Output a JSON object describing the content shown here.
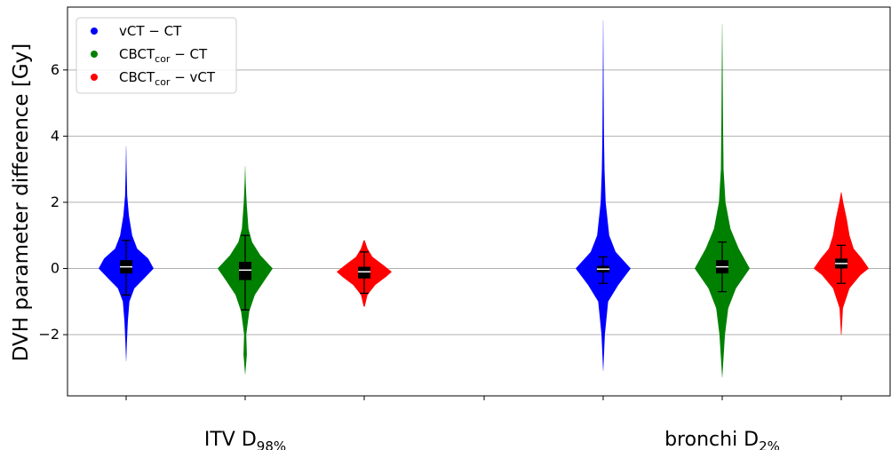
{
  "chart_data": {
    "type": "violin",
    "ylabel": "DVH parameter difference [Gy]",
    "ylim": [
      -3.85,
      7.9
    ],
    "yticks": [
      -2,
      0,
      2,
      4,
      6
    ],
    "grid": "y",
    "legend_position": "top-left",
    "groups": [
      {
        "name": "ITV",
        "sub": "98%"
      },
      {
        "name": "bronchi",
        "sub": "2%"
      }
    ],
    "series": [
      {
        "name": "vCT − CT",
        "label_main": "vCT − CT",
        "label_sub": "",
        "label_rest": "",
        "color": "#0000ff"
      },
      {
        "name": "CBCTcor − CT",
        "label_main": "CBCT",
        "label_sub": "cor",
        "label_rest": " − CT",
        "color": "#008000"
      },
      {
        "name": "CBCTcor − vCT",
        "label_main": "CBCT",
        "label_sub": "cor",
        "label_rest": " − vCT",
        "color": "#ff0000"
      }
    ],
    "violins": [
      {
        "group": 0,
        "series": 0,
        "min": -2.8,
        "max": 3.7,
        "q1": -0.15,
        "median": 0.05,
        "q3": 0.25,
        "wlo": -0.8,
        "whi": 0.85,
        "profile": [
          [
            -2.8,
            0.003
          ],
          [
            -2.2,
            0.03
          ],
          [
            -1.6,
            0.06
          ],
          [
            -1.0,
            0.12
          ],
          [
            -0.6,
            0.3
          ],
          [
            -0.3,
            0.65
          ],
          [
            0.0,
            1.0
          ],
          [
            0.3,
            0.8
          ],
          [
            0.6,
            0.4
          ],
          [
            1.0,
            0.22
          ],
          [
            1.6,
            0.1
          ],
          [
            2.2,
            0.04
          ],
          [
            3.0,
            0.015
          ],
          [
            3.7,
            0.003
          ]
        ]
      },
      {
        "group": 0,
        "series": 1,
        "min": -3.2,
        "max": 3.1,
        "q1": -0.35,
        "median": -0.05,
        "q3": 0.2,
        "wlo": -1.25,
        "whi": 1.0,
        "profile": [
          [
            -3.2,
            0.003
          ],
          [
            -2.6,
            0.06
          ],
          [
            -2.0,
            0.04
          ],
          [
            -1.3,
            0.15
          ],
          [
            -0.8,
            0.35
          ],
          [
            -0.3,
            0.75
          ],
          [
            0.0,
            1.0
          ],
          [
            0.4,
            0.55
          ],
          [
            0.8,
            0.25
          ],
          [
            1.2,
            0.12
          ],
          [
            2.0,
            0.05
          ],
          [
            2.6,
            0.02
          ],
          [
            3.1,
            0.003
          ]
        ]
      },
      {
        "group": 0,
        "series": 2,
        "min": -1.15,
        "max": 0.85,
        "q1": -0.3,
        "median": -0.1,
        "q3": 0.05,
        "wlo": -0.75,
        "whi": 0.5,
        "profile": [
          [
            -1.15,
            0.02
          ],
          [
            -0.8,
            0.12
          ],
          [
            -0.5,
            0.4
          ],
          [
            -0.25,
            0.8
          ],
          [
            -0.1,
            1.0
          ],
          [
            0.1,
            0.7
          ],
          [
            0.35,
            0.3
          ],
          [
            0.6,
            0.12
          ],
          [
            0.85,
            0.02
          ]
        ]
      },
      {
        "group": 1,
        "series": 0,
        "min": -3.1,
        "max": 7.5,
        "q1": -0.12,
        "median": -0.02,
        "q3": 0.08,
        "wlo": -0.45,
        "whi": 0.35,
        "profile": [
          [
            -3.1,
            0.003
          ],
          [
            -2.0,
            0.06
          ],
          [
            -1.0,
            0.18
          ],
          [
            -0.5,
            0.55
          ],
          [
            0.0,
            1.0
          ],
          [
            0.5,
            0.45
          ],
          [
            1.0,
            0.22
          ],
          [
            2.0,
            0.09
          ],
          [
            3.0,
            0.05
          ],
          [
            4.0,
            0.03
          ],
          [
            5.5,
            0.015
          ],
          [
            7.5,
            0.002
          ]
        ]
      },
      {
        "group": 1,
        "series": 1,
        "min": -3.3,
        "max": 7.4,
        "q1": -0.15,
        "median": 0.05,
        "q3": 0.25,
        "wlo": -0.7,
        "whi": 0.8,
        "profile": [
          [
            -3.3,
            0.003
          ],
          [
            -2.0,
            0.1
          ],
          [
            -1.2,
            0.22
          ],
          [
            -0.6,
            0.5
          ],
          [
            0.0,
            1.0
          ],
          [
            0.6,
            0.6
          ],
          [
            1.2,
            0.3
          ],
          [
            2.0,
            0.12
          ],
          [
            3.0,
            0.05
          ],
          [
            4.5,
            0.03
          ],
          [
            6.0,
            0.015
          ],
          [
            7.4,
            0.002
          ]
        ]
      },
      {
        "group": 1,
        "series": 2,
        "min": -2.0,
        "max": 2.3,
        "q1": 0.0,
        "median": 0.15,
        "q3": 0.3,
        "wlo": -0.45,
        "whi": 0.7,
        "profile": [
          [
            -2.0,
            0.01
          ],
          [
            -1.2,
            0.06
          ],
          [
            -0.6,
            0.3
          ],
          [
            -0.2,
            0.7
          ],
          [
            0.0,
            1.0
          ],
          [
            0.3,
            0.75
          ],
          [
            0.6,
            0.45
          ],
          [
            1.0,
            0.3
          ],
          [
            1.5,
            0.2
          ],
          [
            2.0,
            0.07
          ],
          [
            2.3,
            0.01
          ]
        ]
      }
    ]
  }
}
